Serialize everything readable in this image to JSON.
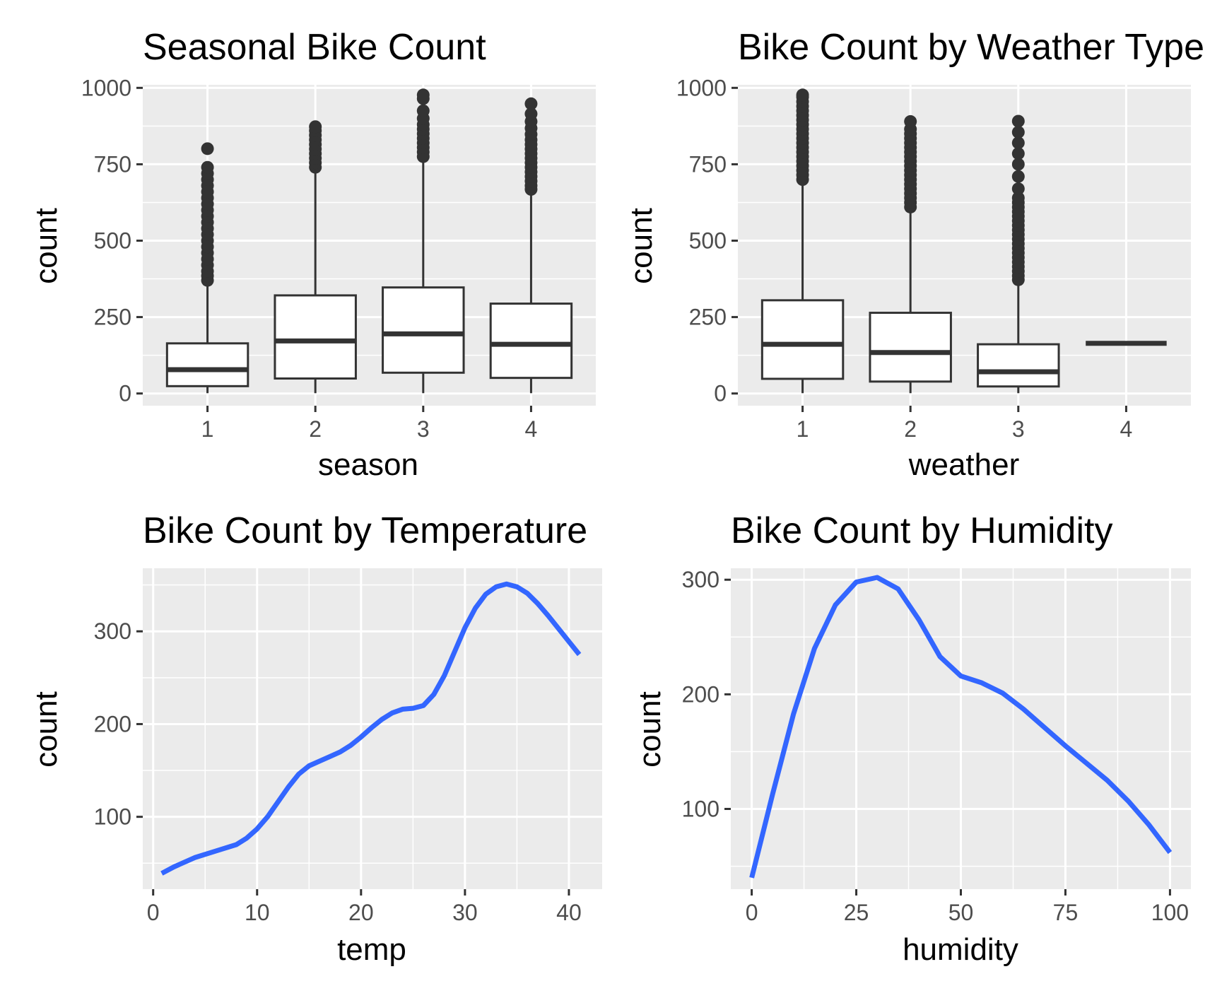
{
  "chart_data": [
    {
      "type": "box",
      "title": "Seasonal Bike Count",
      "xlabel": "season",
      "ylabel": "count",
      "categories": [
        "1",
        "2",
        "3",
        "4"
      ],
      "ylim": [
        -40,
        1010
      ],
      "y_ticks": [
        0,
        250,
        500,
        750,
        1000
      ],
      "grid": true,
      "boxes": [
        {
          "q1": 24,
          "median": 78,
          "q3": 164,
          "whisker_low": 1,
          "whisker_high": 365,
          "outliers": [
            370,
            385,
            400,
            420,
            440,
            460,
            480,
            500,
            520,
            540,
            560,
            580,
            600,
            620,
            640,
            660,
            680,
            700,
            720,
            740,
            801
          ]
        },
        {
          "q1": 49,
          "median": 172,
          "q3": 321,
          "whisker_low": 1,
          "whisker_high": 730,
          "outliers": [
            740,
            755,
            770,
            785,
            800,
            815,
            830,
            845,
            860,
            873
          ]
        },
        {
          "q1": 68,
          "median": 195,
          "q3": 347,
          "whisker_low": 1,
          "whisker_high": 765,
          "outliers": [
            775,
            790,
            805,
            820,
            835,
            850,
            865,
            880,
            900,
            925,
            965,
            977
          ]
        },
        {
          "q1": 51,
          "median": 161,
          "q3": 294,
          "whisker_low": 1,
          "whisker_high": 658,
          "outliers": [
            668,
            680,
            695,
            710,
            725,
            740,
            755,
            770,
            785,
            800,
            815,
            830,
            848,
            868,
            890,
            915,
            948
          ]
        }
      ]
    },
    {
      "type": "box",
      "title": "Bike Count by Weather Type",
      "xlabel": "weather",
      "ylabel": "count",
      "categories": [
        "1",
        "2",
        "3",
        "4"
      ],
      "ylim": [
        -40,
        1010
      ],
      "y_ticks": [
        0,
        250,
        500,
        750,
        1000
      ],
      "grid": true,
      "boxes": [
        {
          "q1": 48,
          "median": 161,
          "q3": 305,
          "whisker_low": 1,
          "whisker_high": 690,
          "outliers": [
            700,
            715,
            730,
            745,
            760,
            775,
            790,
            805,
            820,
            835,
            850,
            865,
            880,
            895,
            910,
            925,
            940,
            955,
            970,
            977
          ]
        },
        {
          "q1": 39,
          "median": 134,
          "q3": 264,
          "whisker_low": 1,
          "whisker_high": 600,
          "outliers": [
            610,
            625,
            640,
            655,
            670,
            685,
            700,
            715,
            730,
            745,
            760,
            775,
            790,
            805,
            820,
            835,
            850,
            865,
            890
          ]
        },
        {
          "q1": 23,
          "median": 71,
          "q3": 161,
          "whisker_low": 1,
          "whisker_high": 363,
          "outliers": [
            372,
            385,
            400,
            415,
            430,
            445,
            460,
            475,
            490,
            505,
            520,
            535,
            550,
            565,
            580,
            595,
            610,
            625,
            640,
            670,
            710,
            750,
            785,
            820,
            855,
            891
          ]
        },
        {
          "q1": 164,
          "median": 164,
          "q3": 164,
          "whisker_low": 164,
          "whisker_high": 164,
          "outliers": []
        }
      ]
    },
    {
      "type": "line",
      "title": "Bike Count by Temperature",
      "xlabel": "temp",
      "ylabel": "count",
      "xlim": [
        -1,
        43.2
      ],
      "ylim": [
        22,
        368
      ],
      "x_ticks": [
        0,
        10,
        20,
        30,
        40
      ],
      "y_ticks": [
        100,
        200,
        300
      ],
      "grid": true,
      "color": "#3366ff",
      "series": [
        {
          "x": [
            0.82,
            2,
            4,
            6,
            8,
            9,
            10,
            11,
            12,
            13,
            14,
            15,
            16,
            17,
            18,
            19,
            20,
            21,
            22,
            23,
            24,
            25,
            26,
            27,
            28,
            29,
            30,
            31,
            32,
            33,
            34,
            35,
            36,
            37,
            38,
            39,
            40,
            41
          ],
          "y": [
            39,
            46,
            56,
            63,
            70,
            77,
            87,
            100,
            116,
            132,
            146,
            155,
            160,
            165,
            170,
            177,
            186,
            196,
            205,
            212,
            216,
            217,
            220,
            232,
            252,
            278,
            304,
            325,
            340,
            348,
            351,
            348,
            341,
            330,
            317,
            303,
            289,
            275
          ]
        }
      ]
    },
    {
      "type": "line",
      "title": "Bike Count by Humidity",
      "xlabel": "humidity",
      "ylabel": "count",
      "xlim": [
        -5,
        105
      ],
      "ylim": [
        30,
        310
      ],
      "x_ticks": [
        0,
        25,
        50,
        75,
        100
      ],
      "y_ticks": [
        100,
        200,
        300
      ],
      "grid": true,
      "color": "#3366ff",
      "series": [
        {
          "x": [
            0,
            5,
            10,
            15,
            20,
            25,
            30,
            35,
            40,
            45,
            50,
            55,
            60,
            65,
            70,
            75,
            80,
            85,
            90,
            95,
            100
          ],
          "y": [
            40,
            113,
            183,
            240,
            278,
            298,
            302,
            292,
            265,
            233,
            216,
            210,
            201,
            187,
            171,
            155,
            140,
            125,
            107,
            86,
            62
          ]
        }
      ]
    }
  ]
}
